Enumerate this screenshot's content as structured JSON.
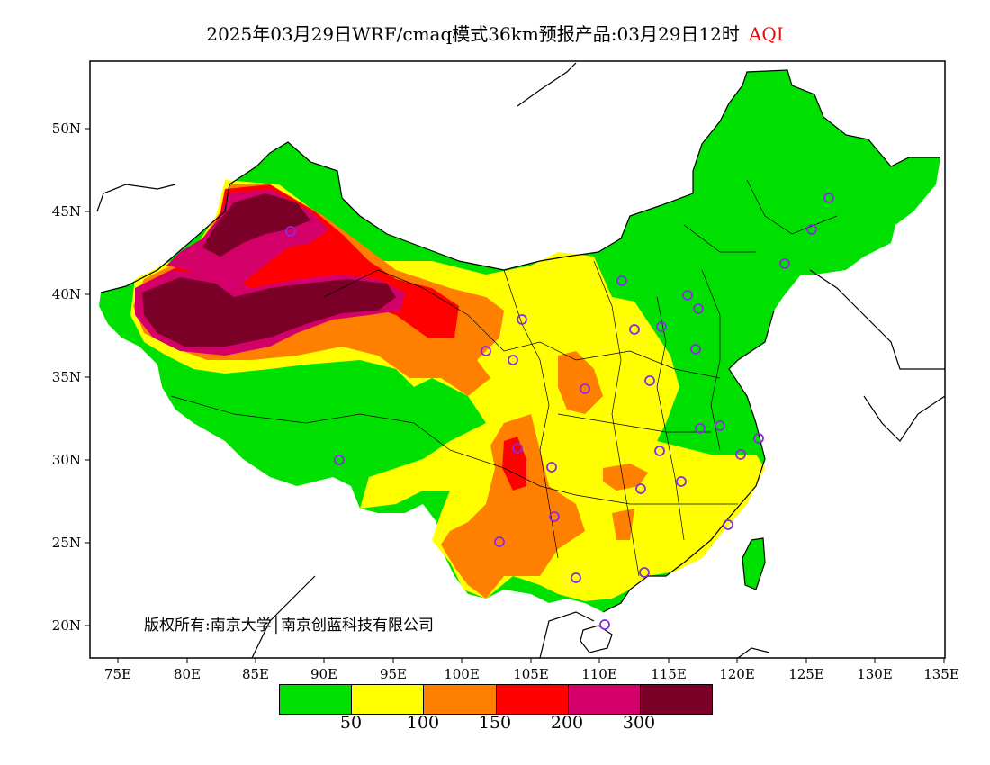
{
  "title": {
    "main": "2025年03月29日WRF/cmaq模式36km预报产品:03月29日12时",
    "variable": "AQI"
  },
  "axes": {
    "lat_labels": [
      "50N",
      "45N",
      "40N",
      "35N",
      "30N",
      "25N",
      "20N"
    ],
    "lon_labels": [
      "75E",
      "80E",
      "85E",
      "90E",
      "95E",
      "100E",
      "105E",
      "110E",
      "115E",
      "120E",
      "125E",
      "130E",
      "135E"
    ]
  },
  "credit": "版权所有:南京大学│南京创蓝科技有限公司",
  "legend": {
    "colors": [
      "#00e000",
      "#ffff00",
      "#ff8000",
      "#ff0000",
      "#d4006a",
      "#7a0028"
    ],
    "labels": [
      "50",
      "100",
      "150",
      "200",
      "300"
    ]
  },
  "colors": {
    "good": "#00e000",
    "moderate": "#ffff00",
    "sensitive": "#ff8000",
    "unhealthy": "#ff0000",
    "very_unhealthy": "#d4006a",
    "hazardous": "#7a0028",
    "station_marker": "#8a2be2"
  }
}
